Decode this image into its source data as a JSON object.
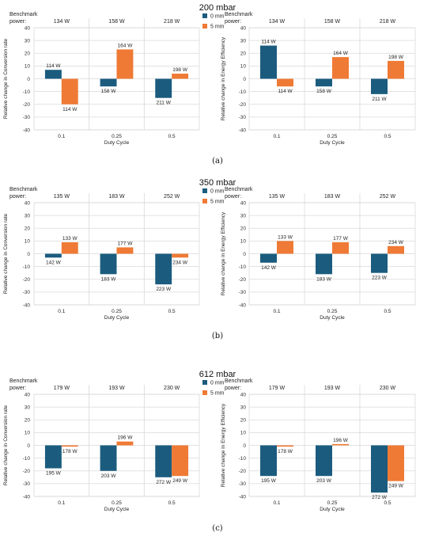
{
  "legend": {
    "series0": "0 mm",
    "series1": "5 mm"
  },
  "colors": {
    "series0": "#1b5c7e",
    "series1": "#ef7a35",
    "grid": "#d9d9d9"
  },
  "chart_data": [
    {
      "type": "bar",
      "panel": 0,
      "title": "200 mbar",
      "subcaption": "(a)",
      "benchmark_label": [
        "Benchmark",
        "power:"
      ],
      "benchmark_values": [
        "134 W",
        "158 W",
        "218 W"
      ],
      "categories": [
        "0.1",
        "0.25",
        "0.5"
      ],
      "xlabel": "Duty Cycle",
      "ylabel": "Relative change in Conversion rate",
      "ylim": [
        -40,
        40
      ],
      "yticks": [
        40,
        30,
        20,
        10,
        0,
        -10,
        -20,
        -30,
        -40
      ],
      "series": [
        {
          "name": "0 mm",
          "values": [
            7,
            -6,
            -15
          ],
          "labels": [
            "114 W",
            "158 W",
            "211 W"
          ]
        },
        {
          "name": "5 mm",
          "values": [
            -20,
            23,
            4
          ],
          "labels": [
            "114 W",
            "164 W",
            "198 W"
          ]
        }
      ]
    },
    {
      "type": "bar",
      "panel": 0,
      "benchmark_label": [
        "Benchmark",
        "power:"
      ],
      "benchmark_values": [
        "134 W",
        "158 W",
        "218 W"
      ],
      "categories": [
        "0.1",
        "0.25",
        "0.5"
      ],
      "xlabel": "Duty Cycle",
      "ylabel": "Relative change in Energy Efficiency",
      "ylim": [
        -40,
        40
      ],
      "yticks": [
        40,
        30,
        20,
        10,
        0,
        -10,
        -20,
        -30,
        -40
      ],
      "series": [
        {
          "name": "0 mm",
          "values": [
            26,
            -6,
            -12
          ],
          "labels": [
            "114 W",
            "158 W",
            "211 W"
          ]
        },
        {
          "name": "5 mm",
          "values": [
            -6,
            17,
            14
          ],
          "labels": [
            "114 W",
            "164 W",
            "198 W"
          ]
        }
      ]
    },
    {
      "type": "bar",
      "panel": 1,
      "title": "350 mbar",
      "subcaption": "(b)",
      "benchmark_label": [
        "Benchmark",
        "power:"
      ],
      "benchmark_values": [
        "135 W",
        "183 W",
        "252 W"
      ],
      "categories": [
        "0.1",
        "0.25",
        "0.5"
      ],
      "xlabel": "Duty Cycle",
      "ylabel": "Relative change in Conversion rate",
      "ylim": [
        -40,
        40
      ],
      "yticks": [
        40,
        30,
        20,
        10,
        0,
        -10,
        -20,
        -30,
        -40
      ],
      "series": [
        {
          "name": "0 mm",
          "values": [
            -3,
            -16,
            -24
          ],
          "labels": [
            "142 W",
            "183 W",
            "223 W"
          ]
        },
        {
          "name": "5 mm",
          "values": [
            9,
            5,
            -3
          ],
          "labels": [
            "133 W",
            "177 W",
            "234 W"
          ]
        }
      ]
    },
    {
      "type": "bar",
      "panel": 1,
      "benchmark_label": [
        "Benchmark",
        "power:"
      ],
      "benchmark_values": [
        "135 W",
        "183 W",
        "252 W"
      ],
      "categories": [
        "0.1",
        "0.25",
        "0.5"
      ],
      "xlabel": "Duty Cycle",
      "ylabel": "Relative change in Energy Efficiency",
      "ylim": [
        -40,
        40
      ],
      "yticks": [
        40,
        30,
        20,
        10,
        0,
        -10,
        -20,
        -30,
        -40
      ],
      "series": [
        {
          "name": "0 mm",
          "values": [
            -7,
            -16,
            -15
          ],
          "labels": [
            "142 W",
            "183 W",
            "223 W"
          ]
        },
        {
          "name": "5 mm",
          "values": [
            10,
            9,
            6
          ],
          "labels": [
            "133 W",
            "177 W",
            "234 W"
          ]
        }
      ]
    },
    {
      "type": "bar",
      "panel": 2,
      "title": "612 mbar",
      "subcaption": "(c)",
      "benchmark_label": [
        "Benchmark",
        "power:"
      ],
      "benchmark_values": [
        "179 W",
        "193 W",
        "230 W"
      ],
      "categories": [
        "0.1",
        "0.25",
        "0.5"
      ],
      "xlabel": "Duty Cycle",
      "ylabel": "Relative change in Conversion rate",
      "ylim": [
        -40,
        40
      ],
      "yticks": [
        40,
        30,
        20,
        10,
        0,
        -10,
        -20,
        -30,
        -40
      ],
      "series": [
        {
          "name": "0 mm",
          "values": [
            -18,
            -20,
            -25
          ],
          "labels": [
            "195 W",
            "203 W",
            "272 W"
          ]
        },
        {
          "name": "5 mm",
          "values": [
            -1,
            3,
            -24
          ],
          "labels": [
            "178 W",
            "196 W",
            "249 W"
          ]
        }
      ]
    },
    {
      "type": "bar",
      "panel": 2,
      "benchmark_label": [
        "Benchmark",
        "power:"
      ],
      "benchmark_values": [
        "179 W",
        "193 W",
        "230 W"
      ],
      "categories": [
        "0.1",
        "0.25",
        "0.5"
      ],
      "xlabel": "Duty Cycle",
      "ylabel": "Relative change in Energy Efficiency",
      "ylim": [
        -40,
        40
      ],
      "yticks": [
        40,
        30,
        20,
        10,
        0,
        -10,
        -20,
        -30,
        -40
      ],
      "series": [
        {
          "name": "0 mm",
          "values": [
            -24,
            -24,
            -37
          ],
          "labels": [
            "195 W",
            "203 W",
            "272 W"
          ]
        },
        {
          "name": "5 mm",
          "values": [
            -1,
            1,
            -28
          ],
          "labels": [
            "178 W",
            "196 W",
            "249 W"
          ]
        }
      ]
    }
  ]
}
